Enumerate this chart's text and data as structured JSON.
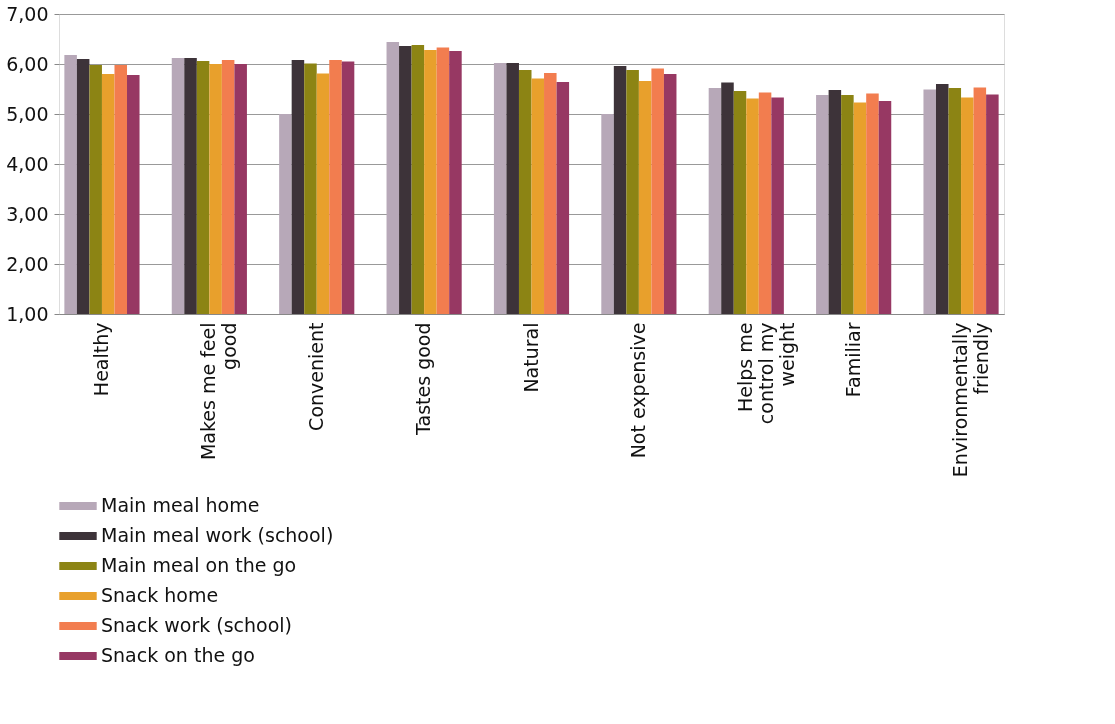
{
  "chart_data": {
    "type": "bar",
    "categories": [
      "Healthy",
      "Makes me feel good",
      "Convenient",
      "Tastes good",
      "Natural",
      "Not expensive",
      "Helps me control my weight",
      "Familiar",
      "Environmentally friendly"
    ],
    "series": [
      {
        "name": "Main meal home",
        "color": "#b7a8b8",
        "values": [
          6.18,
          6.12,
          5.0,
          6.44,
          6.02,
          5.0,
          5.52,
          5.38,
          5.49
        ]
      },
      {
        "name": "Main meal work (school)",
        "color": "#3d3339",
        "values": [
          6.1,
          6.12,
          6.08,
          6.36,
          6.02,
          5.96,
          5.63,
          5.48,
          5.6
        ]
      },
      {
        "name": "Main meal on the go",
        "color": "#8c8414",
        "values": [
          5.98,
          6.06,
          6.01,
          6.38,
          5.88,
          5.88,
          5.46,
          5.38,
          5.52
        ]
      },
      {
        "name": "Snack home",
        "color": "#e8a02c",
        "values": [
          5.8,
          6.0,
          5.81,
          6.28,
          5.71,
          5.66,
          5.31,
          5.23,
          5.33
        ]
      },
      {
        "name": "Snack work (school)",
        "color": "#f27d4f",
        "values": [
          5.98,
          6.08,
          6.08,
          6.33,
          5.82,
          5.91,
          5.43,
          5.41,
          5.53
        ]
      },
      {
        "name": "Snack on the go",
        "color": "#973863",
        "values": [
          5.78,
          6.0,
          6.05,
          6.26,
          5.64,
          5.8,
          5.33,
          5.26,
          5.39
        ]
      }
    ],
    "ylim": [
      1,
      7
    ],
    "yticks": [
      {
        "value": 1,
        "label": "1,00"
      },
      {
        "value": 2,
        "label": "2,00"
      },
      {
        "value": 3,
        "label": "3,00"
      },
      {
        "value": 4,
        "label": "4,00"
      },
      {
        "value": 5,
        "label": "5,00"
      },
      {
        "value": 6,
        "label": "6,00"
      },
      {
        "value": 7,
        "label": "7,00"
      }
    ],
    "grid": "y",
    "legend": "bottom left"
  }
}
